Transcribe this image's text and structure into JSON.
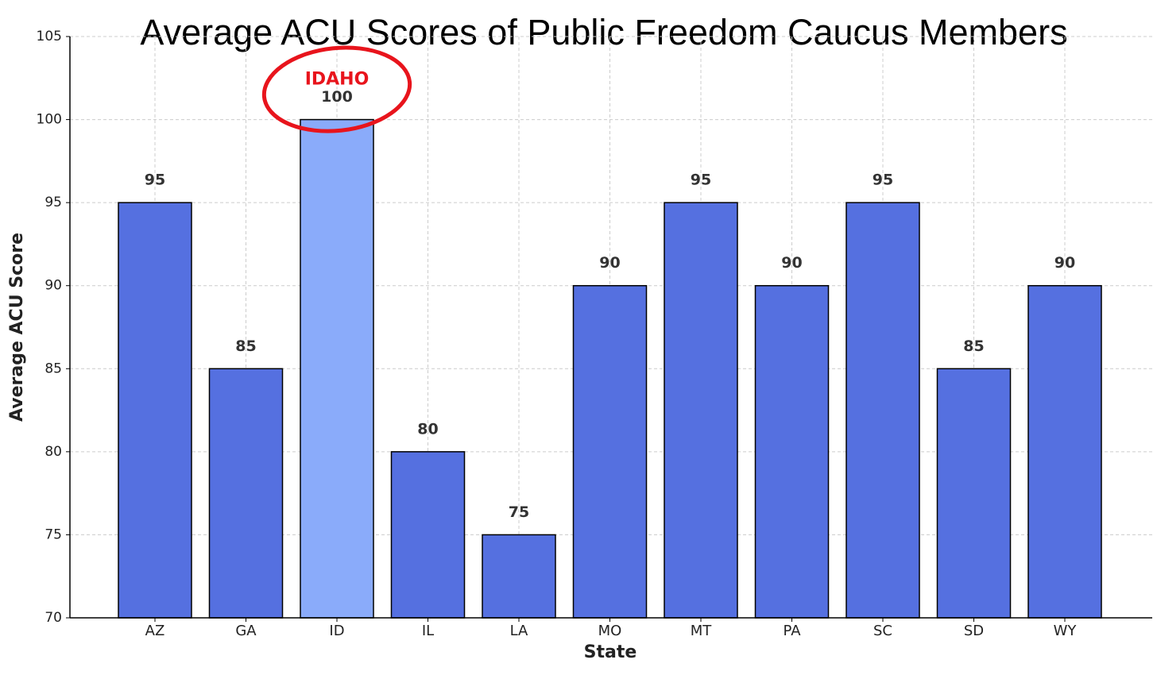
{
  "chart_data": {
    "type": "bar",
    "title": "Average ACU Scores of Public Freedom Caucus Members",
    "x_label": "State",
    "y_label": "Average ACU Score",
    "categories": [
      "AZ",
      "GA",
      "ID",
      "IL",
      "LA",
      "MO",
      "MT",
      "PA",
      "SC",
      "SD",
      "WY"
    ],
    "values": [
      95,
      85,
      100,
      80,
      75,
      90,
      95,
      90,
      95,
      85,
      90
    ],
    "colors": [
      "#5570e0",
      "#5570e0",
      "#8aabfa",
      "#5570e0",
      "#5570e0",
      "#5570e0",
      "#5570e0",
      "#5570e0",
      "#5570e0",
      "#5570e0",
      "#5570e0"
    ],
    "ylim": [
      70,
      105
    ],
    "yticks": [
      70,
      75,
      80,
      85,
      90,
      95,
      100,
      105
    ],
    "grid": true,
    "annotation": {
      "text": "IDAHO",
      "category": "ID",
      "color": "#e8141c"
    }
  }
}
